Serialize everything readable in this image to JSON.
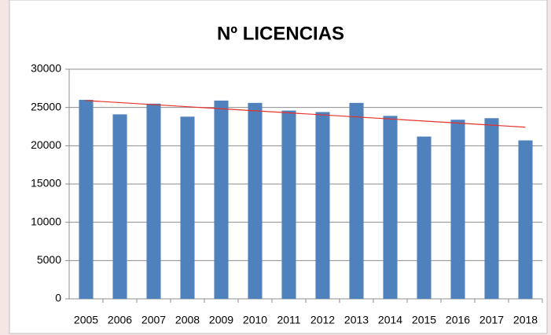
{
  "chart_data": {
    "type": "bar",
    "title": "Nº LICENCIAS",
    "categories": [
      "2005",
      "2006",
      "2007",
      "2008",
      "2009",
      "2010",
      "2011",
      "2012",
      "2013",
      "2014",
      "2015",
      "2016",
      "2017",
      "2018"
    ],
    "values": [
      26000,
      24100,
      25500,
      23800,
      25900,
      25600,
      24600,
      24400,
      25600,
      23900,
      21200,
      23400,
      23600,
      20700
    ],
    "color": "#4f81bd",
    "ylim": [
      0,
      30000
    ],
    "yticks": [
      0,
      5000,
      10000,
      15000,
      20000,
      25000,
      30000
    ],
    "grid": true,
    "trendline": true,
    "trendline_color": "#e8302a"
  }
}
